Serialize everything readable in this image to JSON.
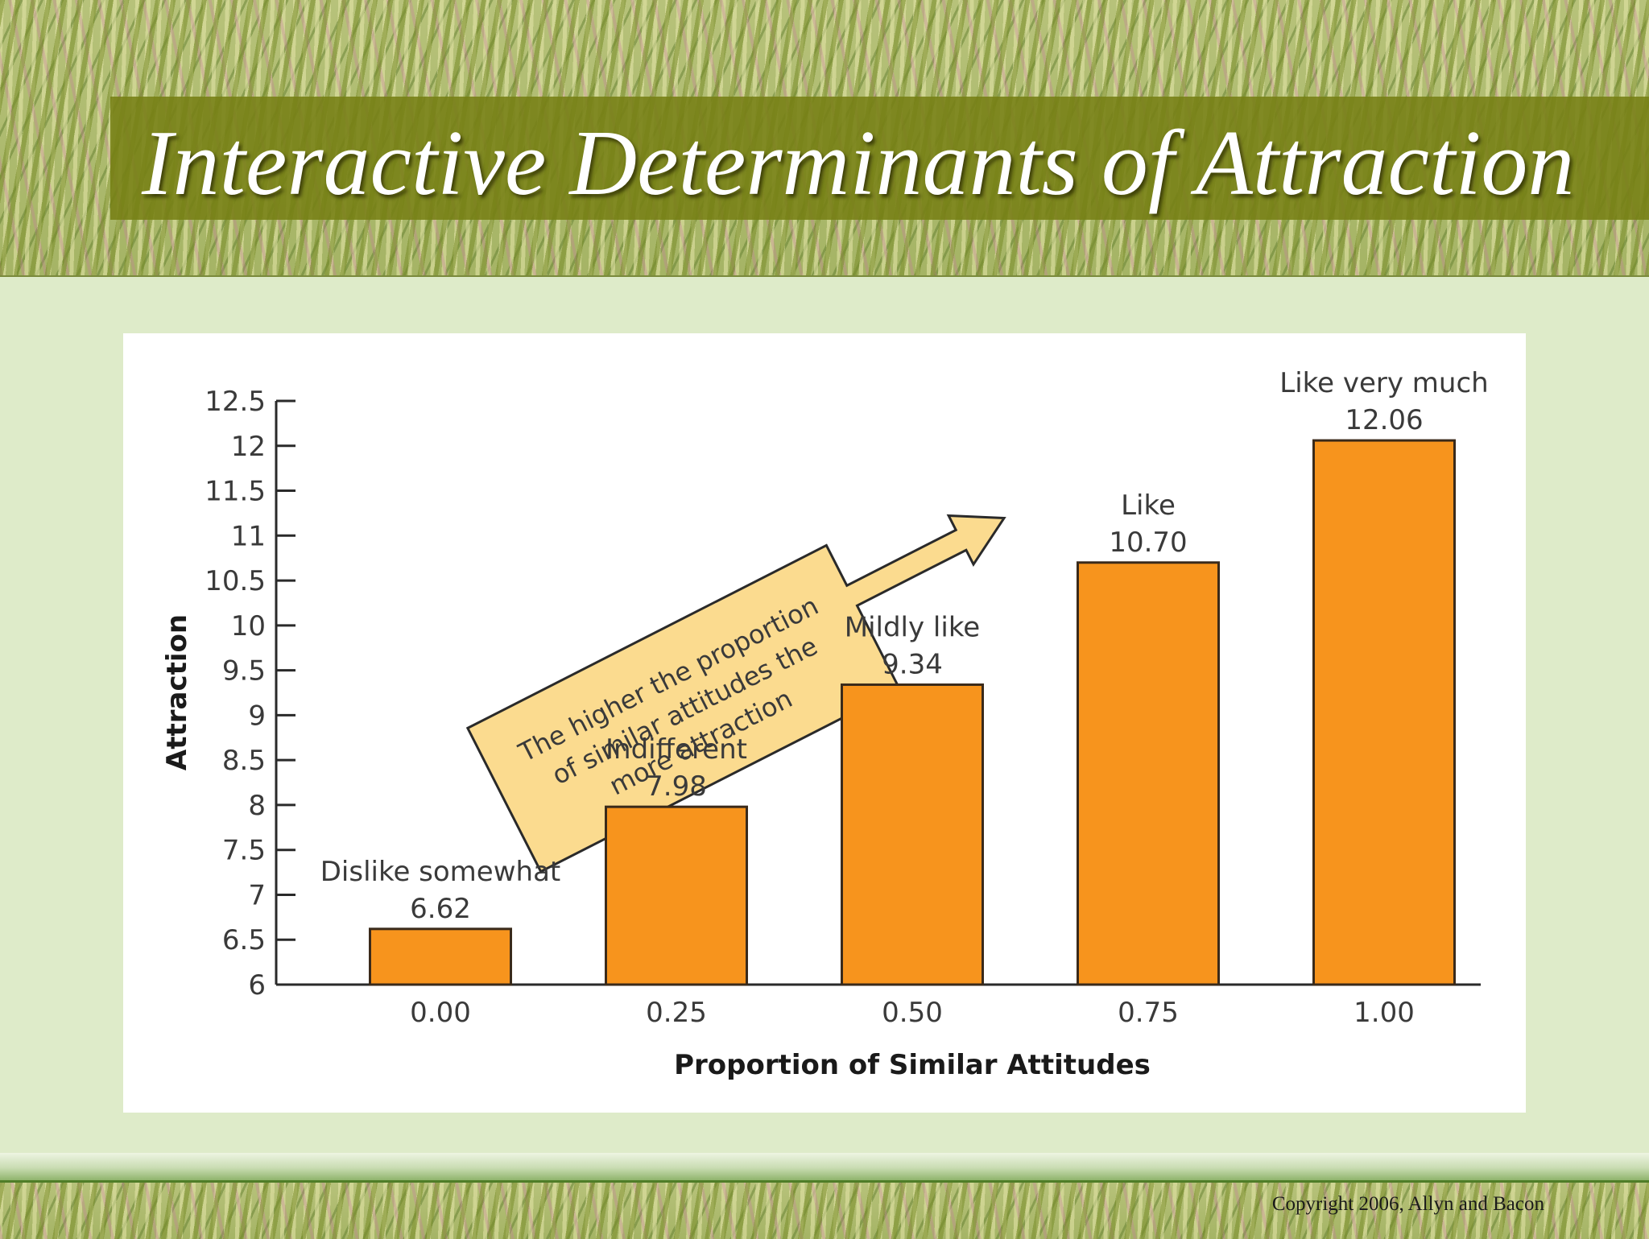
{
  "slide": {
    "title": "Interactive Determinants of Attraction",
    "copyright": "Copyright 2006, Allyn and Bacon"
  },
  "colors": {
    "bar_fill": "#f7941d",
    "bar_stroke": "#3a2a1a",
    "callout_fill": "#fbdb8f",
    "axis": "#2a2a2a"
  },
  "chart_data": {
    "type": "bar",
    "title": "",
    "xlabel": "Proportion of Similar Attitudes",
    "ylabel": "Attraction",
    "categories": [
      "0.00",
      "0.25",
      "0.50",
      "0.75",
      "1.00"
    ],
    "values": [
      6.62,
      7.98,
      9.34,
      10.7,
      12.06
    ],
    "value_labels": [
      "6.62",
      "7.98",
      "9.34",
      "10.70",
      "12.06"
    ],
    "bar_annotations": [
      "Dislike somewhat",
      "Indifferent",
      "Mildly like",
      "Like",
      "Like very much"
    ],
    "ylim": [
      6,
      12.5
    ],
    "yticks": [
      "12.5",
      "12",
      "11.5",
      "11",
      "10.5",
      "10",
      "9.5",
      "9",
      "8.5",
      "8",
      "7.5",
      "7",
      "6.5",
      "6"
    ],
    "grid": false,
    "callout": {
      "lines": [
        "The higher the proportion",
        "of similar attitudes the",
        "more attraction"
      ]
    }
  }
}
